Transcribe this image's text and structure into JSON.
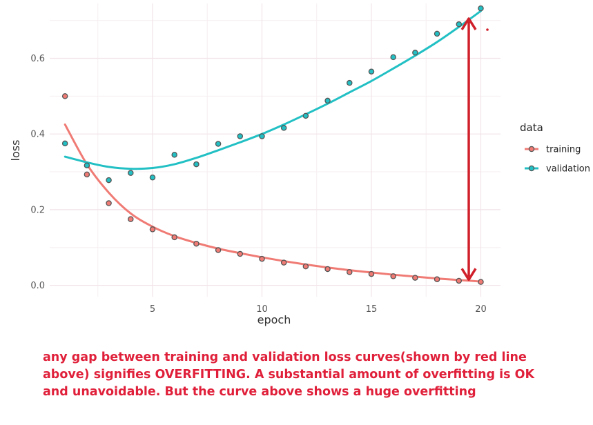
{
  "chart_data": {
    "type": "scatter",
    "xlabel": "epoch",
    "ylabel": "loss",
    "xlim": [
      0.3,
      20.9
    ],
    "ylim": [
      -0.03,
      0.745
    ],
    "x_ticks": [
      5,
      10,
      15,
      20
    ],
    "y_ticks": [
      0.0,
      0.2,
      0.4,
      0.6
    ],
    "x_tick_labels": [
      "5",
      "10",
      "15",
      "20"
    ],
    "y_tick_labels": [
      "0.0",
      "0.2",
      "0.4",
      "0.6"
    ],
    "grid": true,
    "legend": {
      "title": "data",
      "position": "right"
    },
    "x": [
      1,
      2,
      3,
      4,
      5,
      6,
      7,
      8,
      9,
      10,
      11,
      12,
      13,
      14,
      15,
      16,
      17,
      18,
      19,
      20
    ],
    "series": [
      {
        "name": "training",
        "color": "#f07b75",
        "values": [
          0.5,
          0.293,
          0.217,
          0.175,
          0.148,
          0.127,
          0.11,
          0.093,
          0.083,
          0.07,
          0.06,
          0.05,
          0.043,
          0.035,
          0.03,
          0.024,
          0.02,
          0.016,
          0.012,
          0.009
        ],
        "smooth": [
          0.425,
          0.32,
          0.245,
          0.19,
          0.155,
          0.13,
          0.112,
          0.097,
          0.085,
          0.074,
          0.064,
          0.055,
          0.047,
          0.04,
          0.034,
          0.028,
          0.023,
          0.018,
          0.014,
          0.01
        ]
      },
      {
        "name": "validation",
        "color": "#22c0c4",
        "values": [
          0.375,
          0.317,
          0.278,
          0.297,
          0.285,
          0.345,
          0.32,
          0.374,
          0.394,
          0.394,
          0.416,
          0.448,
          0.488,
          0.535,
          0.565,
          0.603,
          0.615,
          0.665,
          0.69,
          0.732
        ],
        "smooth": [
          0.34,
          0.325,
          0.313,
          0.308,
          0.31,
          0.32,
          0.337,
          0.357,
          0.378,
          0.4,
          0.425,
          0.452,
          0.48,
          0.51,
          0.54,
          0.573,
          0.607,
          0.643,
          0.683,
          0.725
        ]
      }
    ],
    "annotation": {
      "type": "double-arrow",
      "color": "#d0202a",
      "x": 19.45,
      "y_from": 0.015,
      "y_to": 0.705
    }
  },
  "caption": "any gap between training and validation loss curves(shown by red line above) signifies OVERFITTING. A substantial amount of overfitting is OK and unavoidable. But the curve above shows a huge overfitting"
}
